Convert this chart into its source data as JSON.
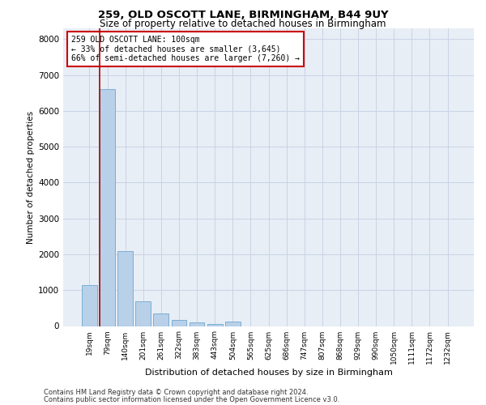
{
  "title_line1": "259, OLD OSCOTT LANE, BIRMINGHAM, B44 9UY",
  "title_line2": "Size of property relative to detached houses in Birmingham",
  "xlabel": "Distribution of detached houses by size in Birmingham",
  "ylabel": "Number of detached properties",
  "footer_line1": "Contains HM Land Registry data © Crown copyright and database right 2024.",
  "footer_line2": "Contains public sector information licensed under the Open Government Licence v3.0.",
  "annotation_line1": "259 OLD OSCOTT LANE: 100sqm",
  "annotation_line2": "← 33% of detached houses are smaller (3,645)",
  "annotation_line3": "66% of semi-detached houses are larger (7,260) →",
  "bin_labels": [
    "19sqm",
    "79sqm",
    "140sqm",
    "201sqm",
    "261sqm",
    "322sqm",
    "383sqm",
    "443sqm",
    "504sqm",
    "565sqm",
    "625sqm",
    "686sqm",
    "747sqm",
    "807sqm",
    "868sqm",
    "929sqm",
    "990sqm",
    "1050sqm",
    "1111sqm",
    "1172sqm",
    "1232sqm"
  ],
  "bar_values": [
    1150,
    6600,
    2100,
    680,
    340,
    160,
    100,
    60,
    120,
    0,
    0,
    0,
    0,
    0,
    0,
    0,
    0,
    0,
    0,
    0,
    0
  ],
  "bar_color": "#b8d0e8",
  "bar_edge_color": "#7aafd4",
  "ylim": [
    0,
    8300
  ],
  "yticks": [
    0,
    1000,
    2000,
    3000,
    4000,
    5000,
    6000,
    7000,
    8000
  ],
  "annotation_box_color": "#cc0000",
  "property_line_color": "#aa0000",
  "grid_color": "#c8d4e4",
  "bg_color": "#e8eef6"
}
